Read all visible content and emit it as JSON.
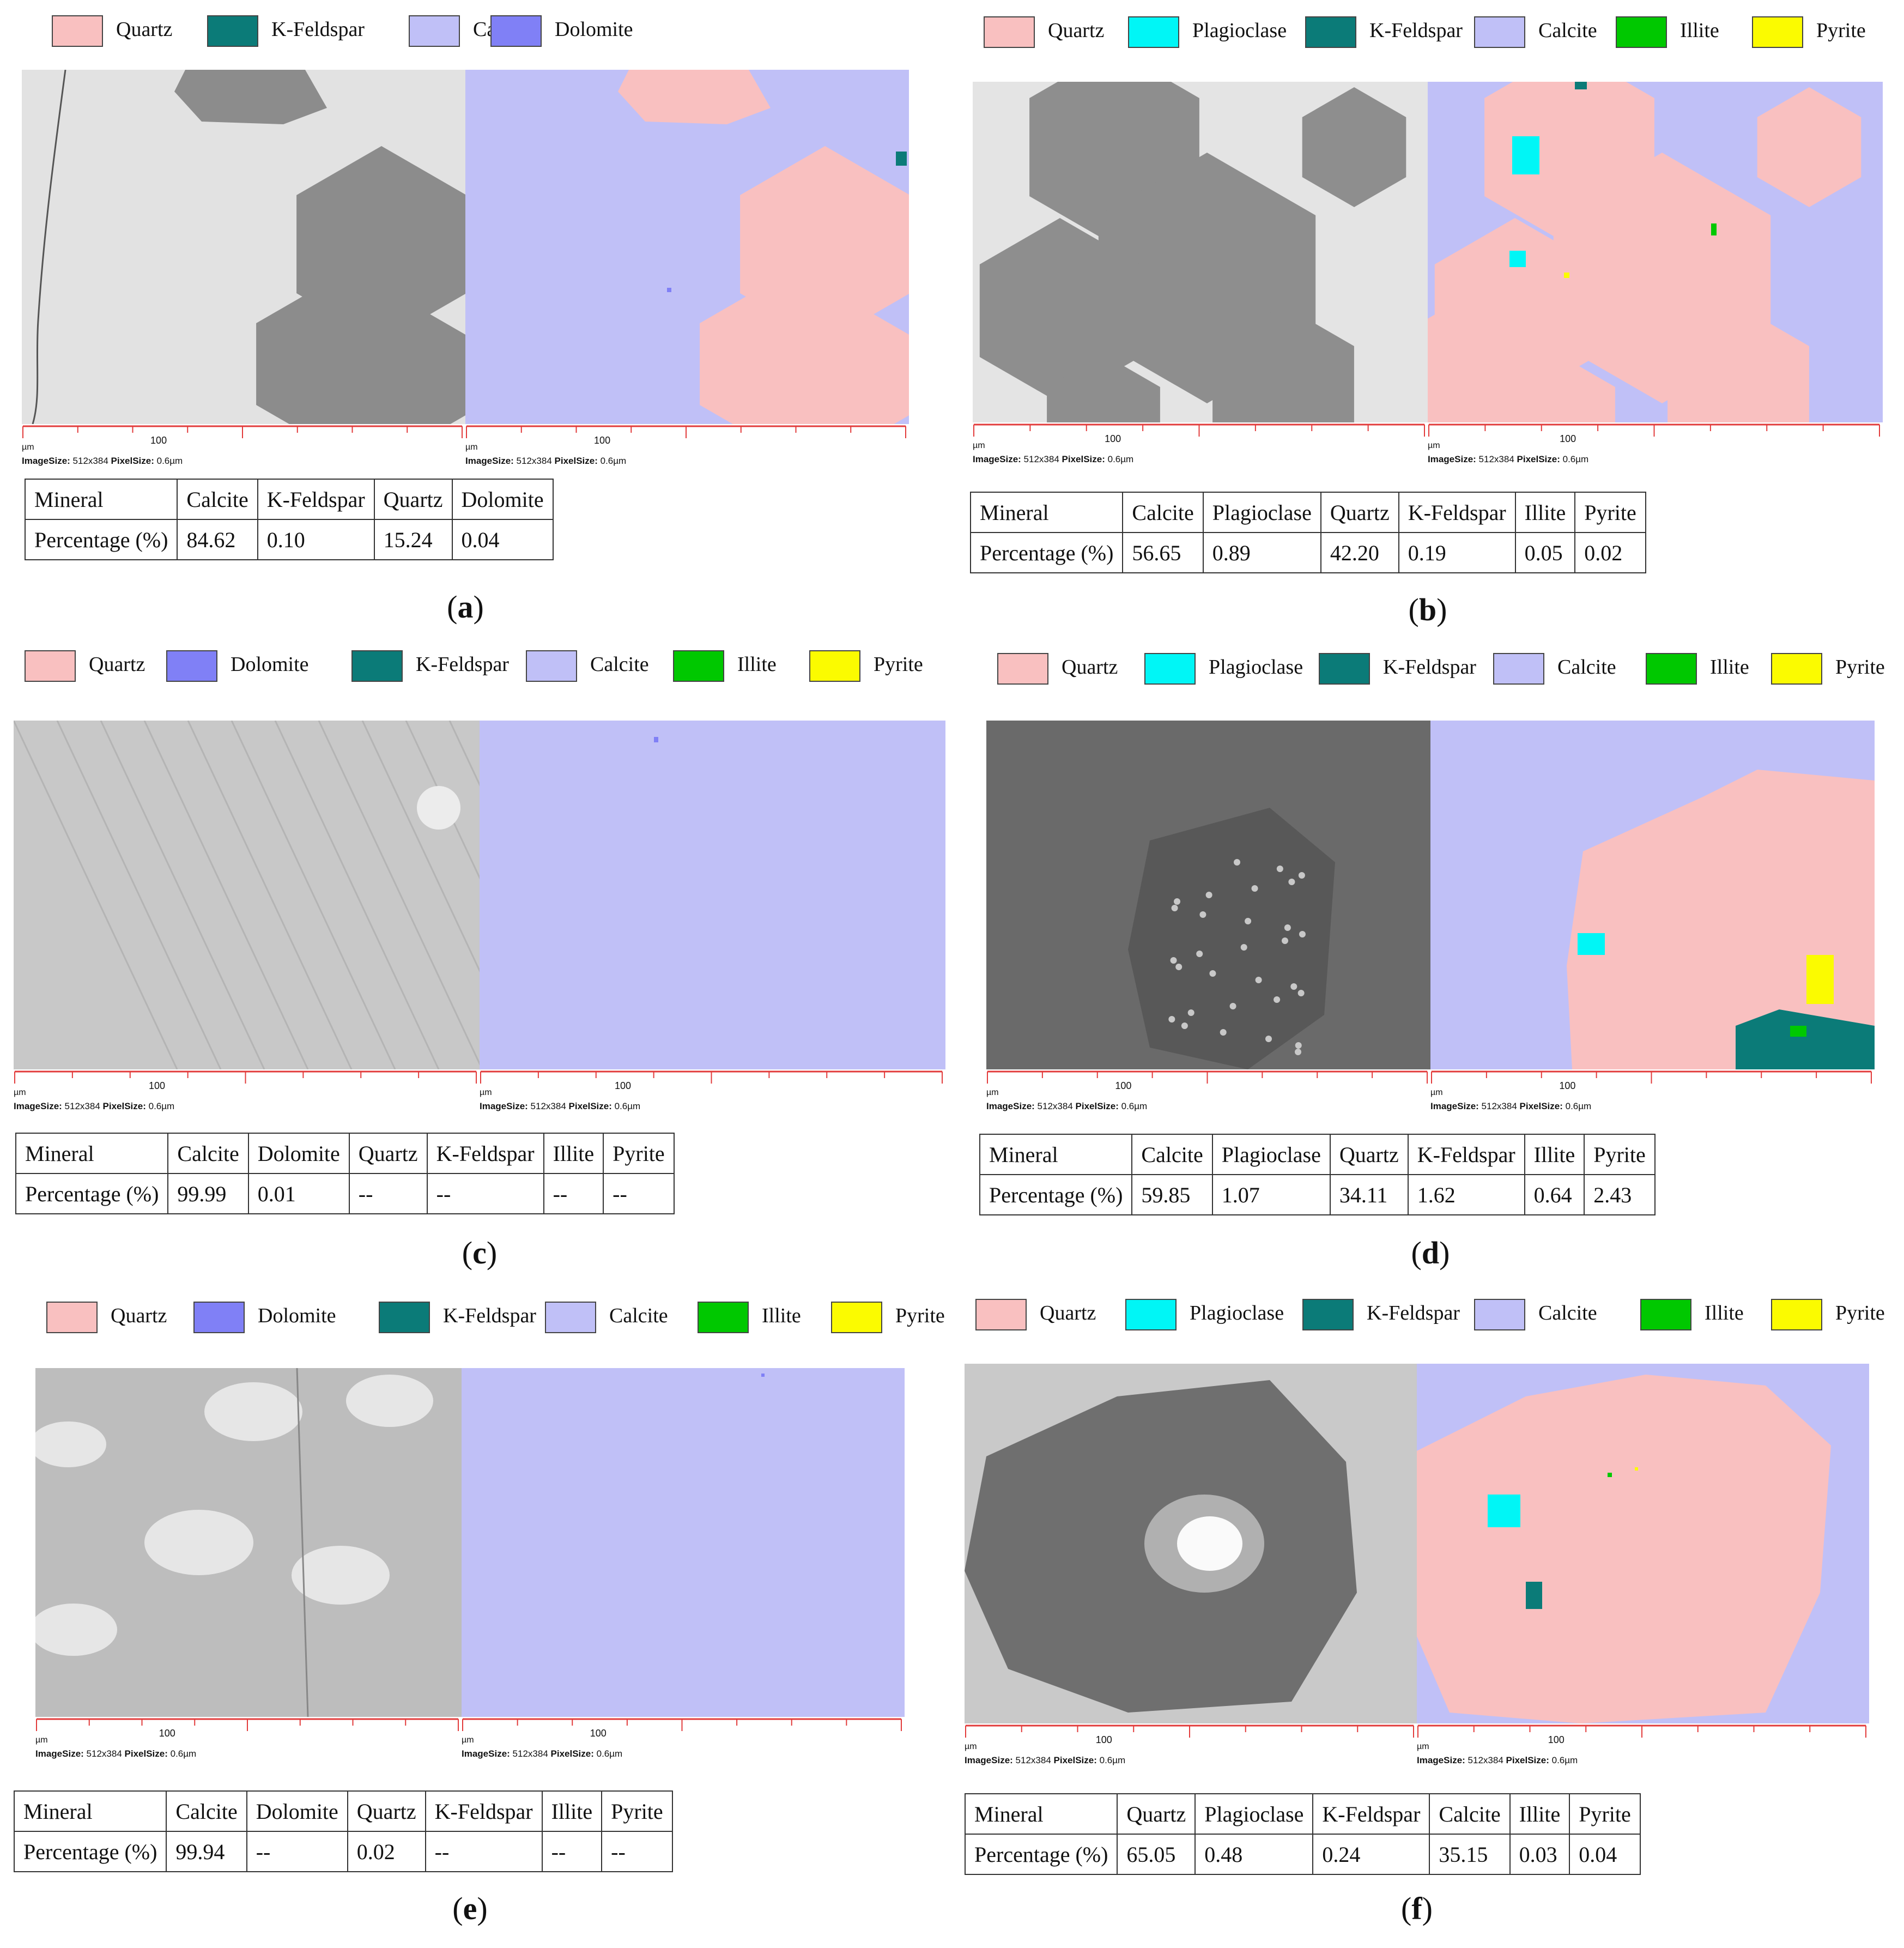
{
  "scale_labels": {
    "unit": "µm",
    "tick": "100",
    "image_size_label": "ImageSize:",
    "image_size_value": "512x384",
    "pixel_size_label": "PixelSize:",
    "pixel_size_value": "0.6µm"
  },
  "colors": {
    "Quartz": "#f9c0c0",
    "K-Feldspar": "#0b7b78",
    "Calcite": "#c0c0f7",
    "Dolomite": "#8080f6",
    "Plagioclase": "#00f6f6",
    "Illite": "#00c800",
    "Pyrite": "#fbfb00"
  },
  "panels": [
    {
      "id": "a",
      "caption": "a",
      "legend": [
        "Quartz",
        "K-Feldspar",
        "Calcite",
        "Dolomite"
      ],
      "table": {
        "header": [
          "Mineral",
          "Calcite",
          "K-Feldspar",
          "Quartz",
          "Dolomite"
        ],
        "row": [
          "Percentage (%)",
          "84.62",
          "0.10",
          "15.24",
          "0.04"
        ]
      }
    },
    {
      "id": "b",
      "caption": "b",
      "legend": [
        "Quartz",
        "Plagioclase",
        "K-Feldspar",
        "Calcite",
        "Illite",
        "Pyrite"
      ],
      "table": {
        "header": [
          "Mineral",
          "Calcite",
          "Plagioclase",
          "Quartz",
          "K-Feldspar",
          "Illite",
          "Pyrite"
        ],
        "row": [
          "Percentage (%)",
          "56.65",
          "0.89",
          "42.20",
          "0.19",
          "0.05",
          "0.02"
        ]
      }
    },
    {
      "id": "c",
      "caption": "c",
      "legend": [
        "Quartz",
        "Dolomite",
        "K-Feldspar",
        "Calcite",
        "Illite",
        "Pyrite"
      ],
      "table": {
        "header": [
          "Mineral",
          "Calcite",
          "Dolomite",
          "Quartz",
          "K-Feldspar",
          "Illite",
          "Pyrite"
        ],
        "row": [
          "Percentage (%)",
          "99.99",
          "0.01",
          "--",
          "--",
          "--",
          "--"
        ]
      }
    },
    {
      "id": "d",
      "caption": "d",
      "legend": [
        "Quartz",
        "Plagioclase",
        "K-Feldspar",
        "Calcite",
        "Illite",
        "Pyrite"
      ],
      "table": {
        "header": [
          "Mineral",
          "Calcite",
          "Plagioclase",
          "Quartz",
          "K-Feldspar",
          "Illite",
          "Pyrite"
        ],
        "row": [
          "Percentage (%)",
          "59.85",
          "1.07",
          "34.11",
          "1.62",
          "0.64",
          "2.43"
        ]
      }
    },
    {
      "id": "e",
      "caption": "e",
      "legend": [
        "Quartz",
        "Dolomite",
        "K-Feldspar",
        "Calcite",
        "Illite",
        "Pyrite"
      ],
      "table": {
        "header": [
          "Mineral",
          "Calcite",
          "Dolomite",
          "Quartz",
          "K-Feldspar",
          "Illite",
          "Pyrite"
        ],
        "row": [
          "Percentage (%)",
          "99.94",
          "--",
          "0.02",
          "--",
          "--",
          "--"
        ]
      }
    },
    {
      "id": "f",
      "caption": "f",
      "legend": [
        "Quartz",
        "Plagioclase",
        "K-Feldspar",
        "Calcite",
        "Illite",
        "Pyrite"
      ],
      "table": {
        "header": [
          "Mineral",
          "Quartz",
          "Plagioclase",
          "K-Feldspar",
          "Calcite",
          "Illite",
          "Pyrite"
        ],
        "row": [
          "Percentage (%)",
          "65.05",
          "0.48",
          "0.24",
          "35.15",
          "0.03",
          "0.04"
        ]
      }
    }
  ]
}
